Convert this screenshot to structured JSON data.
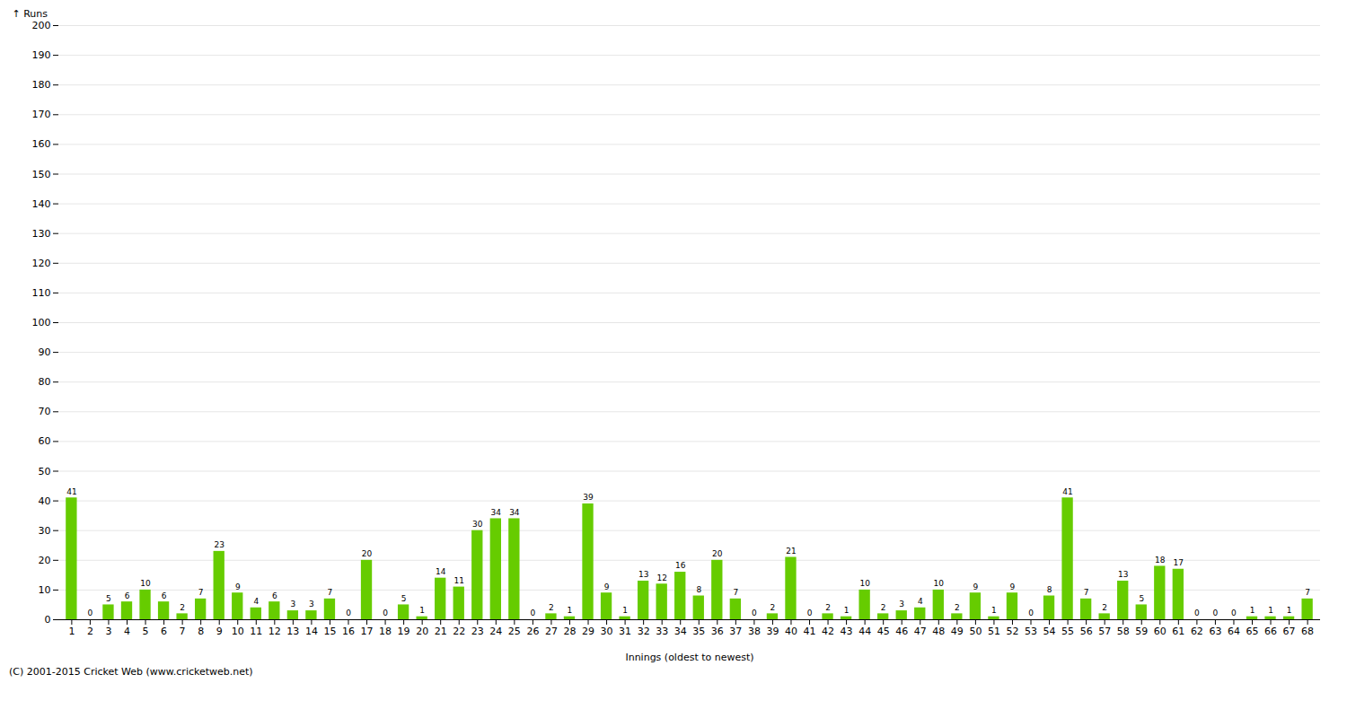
{
  "chart_data": {
    "type": "bar",
    "xlabel": "Innings (oldest to newest)",
    "ylabel": "Runs",
    "footer": "(C) 2001-2015 Cricket Web (www.cricketweb.net)",
    "categories": [
      "1",
      "2",
      "3",
      "4",
      "5",
      "6",
      "7",
      "8",
      "9",
      "10",
      "11",
      "12",
      "13",
      "14",
      "15",
      "16",
      "17",
      "18",
      "19",
      "20",
      "21",
      "22",
      "23",
      "24",
      "25",
      "26",
      "27",
      "28",
      "29",
      "30",
      "31",
      "32",
      "33",
      "34",
      "35",
      "36",
      "37",
      "38",
      "39",
      "40",
      "41",
      "42",
      "43",
      "44",
      "45",
      "46",
      "47",
      "48",
      "49",
      "50",
      "51",
      "52",
      "53",
      "54",
      "55",
      "56",
      "57",
      "58",
      "59",
      "60",
      "61",
      "62",
      "63",
      "64",
      "65",
      "66",
      "67",
      "68"
    ],
    "values": [
      41,
      0,
      5,
      6,
      10,
      6,
      2,
      7,
      23,
      9,
      4,
      6,
      3,
      3,
      7,
      0,
      20,
      0,
      5,
      1,
      14,
      11,
      30,
      34,
      34,
      0,
      2,
      1,
      39,
      9,
      1,
      13,
      12,
      16,
      8,
      20,
      7,
      0,
      2,
      21,
      0,
      2,
      1,
      10,
      2,
      3,
      4,
      10,
      2,
      9,
      1,
      9,
      0,
      8,
      41,
      7,
      2,
      13,
      5,
      18,
      17,
      0,
      0,
      0,
      1,
      1,
      1,
      7
    ],
    "color": "#66cc00",
    "ylim": [
      0,
      200
    ],
    "yticks": [
      0,
      10,
      20,
      30,
      40,
      50,
      60,
      70,
      80,
      90,
      100,
      110,
      120,
      130,
      140,
      150,
      160,
      170,
      180,
      190,
      200
    ],
    "grid": true,
    "data_labels": true
  }
}
